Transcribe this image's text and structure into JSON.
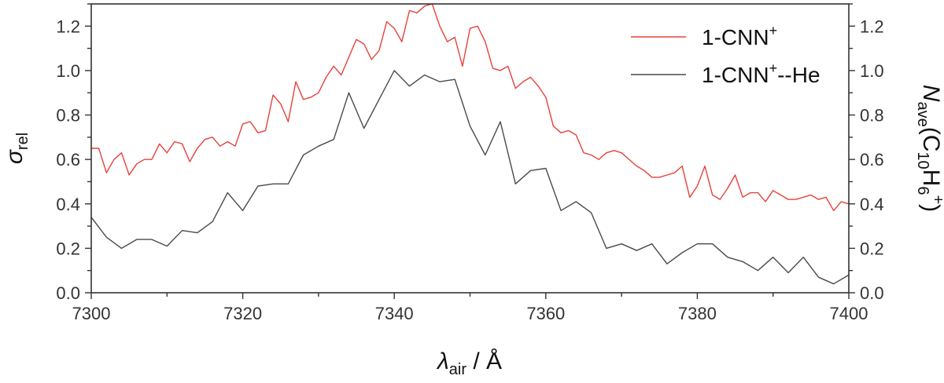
{
  "chart_data": {
    "type": "line",
    "xlabel": {
      "main": "λ",
      "sub": "air",
      "rest": " / Å"
    },
    "ylabel_left": {
      "main": "σ",
      "sub": "rel"
    },
    "ylabel_right": {
      "main": "N",
      "sub1": "ave",
      "rest1": "(C",
      "sub2": "10",
      "rest2": "H",
      "sub3": "6",
      "sup": "+",
      "rest3": ")"
    },
    "xlim": [
      7300,
      7400
    ],
    "ylim_left": [
      0,
      1.3
    ],
    "ylim_right": [
      0,
      1.3
    ],
    "x_ticks": [
      "7300",
      "7320",
      "7340",
      "7360",
      "7380",
      "7400"
    ],
    "y_ticks_left": [
      "0.0",
      "0.2",
      "0.4",
      "0.6",
      "0.8",
      "1.0",
      "1.2"
    ],
    "y_ticks_right": [
      "0.0",
      "0.2",
      "0.4",
      "0.6",
      "0.8",
      "1.0",
      "1.2"
    ],
    "legend_position": "top-right",
    "series": [
      {
        "name": "1-CNN+",
        "legend": {
          "base": "1-CNN",
          "sup": "+",
          "tail": ""
        },
        "color": "#e8413c",
        "axis": "left",
        "x": [
          7300,
          7301,
          7302,
          7303,
          7304,
          7305,
          7306,
          7307,
          7308,
          7309,
          7310,
          7311,
          7312,
          7313,
          7314,
          7315,
          7316,
          7317,
          7318,
          7319,
          7320,
          7321,
          7322,
          7323,
          7324,
          7325,
          7326,
          7327,
          7328,
          7329,
          7330,
          7331,
          7332,
          7333,
          7334,
          7335,
          7336,
          7337,
          7338,
          7339,
          7340,
          7341,
          7342,
          7343,
          7344,
          7345,
          7346,
          7347,
          7348,
          7349,
          7350,
          7351,
          7352,
          7353,
          7354,
          7355,
          7356,
          7357,
          7358,
          7359,
          7360,
          7361,
          7362,
          7363,
          7364,
          7365,
          7366,
          7367,
          7368,
          7369,
          7370,
          7371,
          7372,
          7373,
          7374,
          7375,
          7376,
          7377,
          7378,
          7379,
          7380,
          7381,
          7382,
          7383,
          7384,
          7385,
          7386,
          7387,
          7388,
          7389,
          7390,
          7391,
          7392,
          7393,
          7394,
          7395,
          7396,
          7397,
          7398,
          7399,
          7400
        ],
        "y": [
          0.65,
          0.65,
          0.54,
          0.6,
          0.63,
          0.53,
          0.58,
          0.6,
          0.6,
          0.67,
          0.63,
          0.68,
          0.67,
          0.59,
          0.65,
          0.69,
          0.7,
          0.66,
          0.68,
          0.66,
          0.76,
          0.77,
          0.72,
          0.73,
          0.89,
          0.85,
          0.77,
          0.95,
          0.87,
          0.88,
          0.9,
          0.97,
          1.02,
          0.98,
          1.06,
          1.14,
          1.12,
          1.05,
          1.09,
          1.22,
          1.19,
          1.13,
          1.27,
          1.26,
          1.29,
          1.3,
          1.2,
          1.13,
          1.15,
          1.02,
          1.19,
          1.2,
          1.13,
          1.01,
          1.0,
          1.02,
          0.92,
          0.95,
          0.97,
          0.93,
          0.88,
          0.75,
          0.72,
          0.73,
          0.71,
          0.63,
          0.62,
          0.6,
          0.63,
          0.64,
          0.63,
          0.6,
          0.57,
          0.55,
          0.52,
          0.52,
          0.53,
          0.54,
          0.57,
          0.43,
          0.48,
          0.57,
          0.44,
          0.42,
          0.47,
          0.53,
          0.43,
          0.45,
          0.45,
          0.41,
          0.46,
          0.44,
          0.42,
          0.42,
          0.43,
          0.44,
          0.42,
          0.43,
          0.37,
          0.41,
          0.4
        ]
      },
      {
        "name": "1-CNN+--He",
        "legend": {
          "base": "1-CNN",
          "sup": "+",
          "tail": "--He"
        },
        "color": "#4a4a4a",
        "axis": "right",
        "x": [
          7300,
          7302,
          7304,
          7306,
          7308,
          7310,
          7312,
          7314,
          7316,
          7318,
          7320,
          7322,
          7324,
          7326,
          7328,
          7330,
          7332,
          7334,
          7336,
          7338,
          7340,
          7342,
          7344,
          7346,
          7348,
          7350,
          7352,
          7354,
          7356,
          7358,
          7360,
          7362,
          7364,
          7366,
          7368,
          7370,
          7372,
          7374,
          7376,
          7378,
          7380,
          7382,
          7384,
          7386,
          7388,
          7390,
          7392,
          7394,
          7396,
          7398,
          7400
        ],
        "y": [
          0.34,
          0.25,
          0.2,
          0.24,
          0.24,
          0.21,
          0.28,
          0.27,
          0.32,
          0.45,
          0.37,
          0.48,
          0.49,
          0.49,
          0.62,
          0.66,
          0.69,
          0.9,
          0.74,
          0.87,
          1.0,
          0.93,
          0.98,
          0.95,
          0.96,
          0.75,
          0.62,
          0.77,
          0.49,
          0.55,
          0.56,
          0.37,
          0.41,
          0.36,
          0.2,
          0.22,
          0.19,
          0.22,
          0.13,
          0.18,
          0.22,
          0.22,
          0.16,
          0.14,
          0.1,
          0.16,
          0.09,
          0.16,
          0.07,
          0.04,
          0.08
        ]
      }
    ]
  }
}
